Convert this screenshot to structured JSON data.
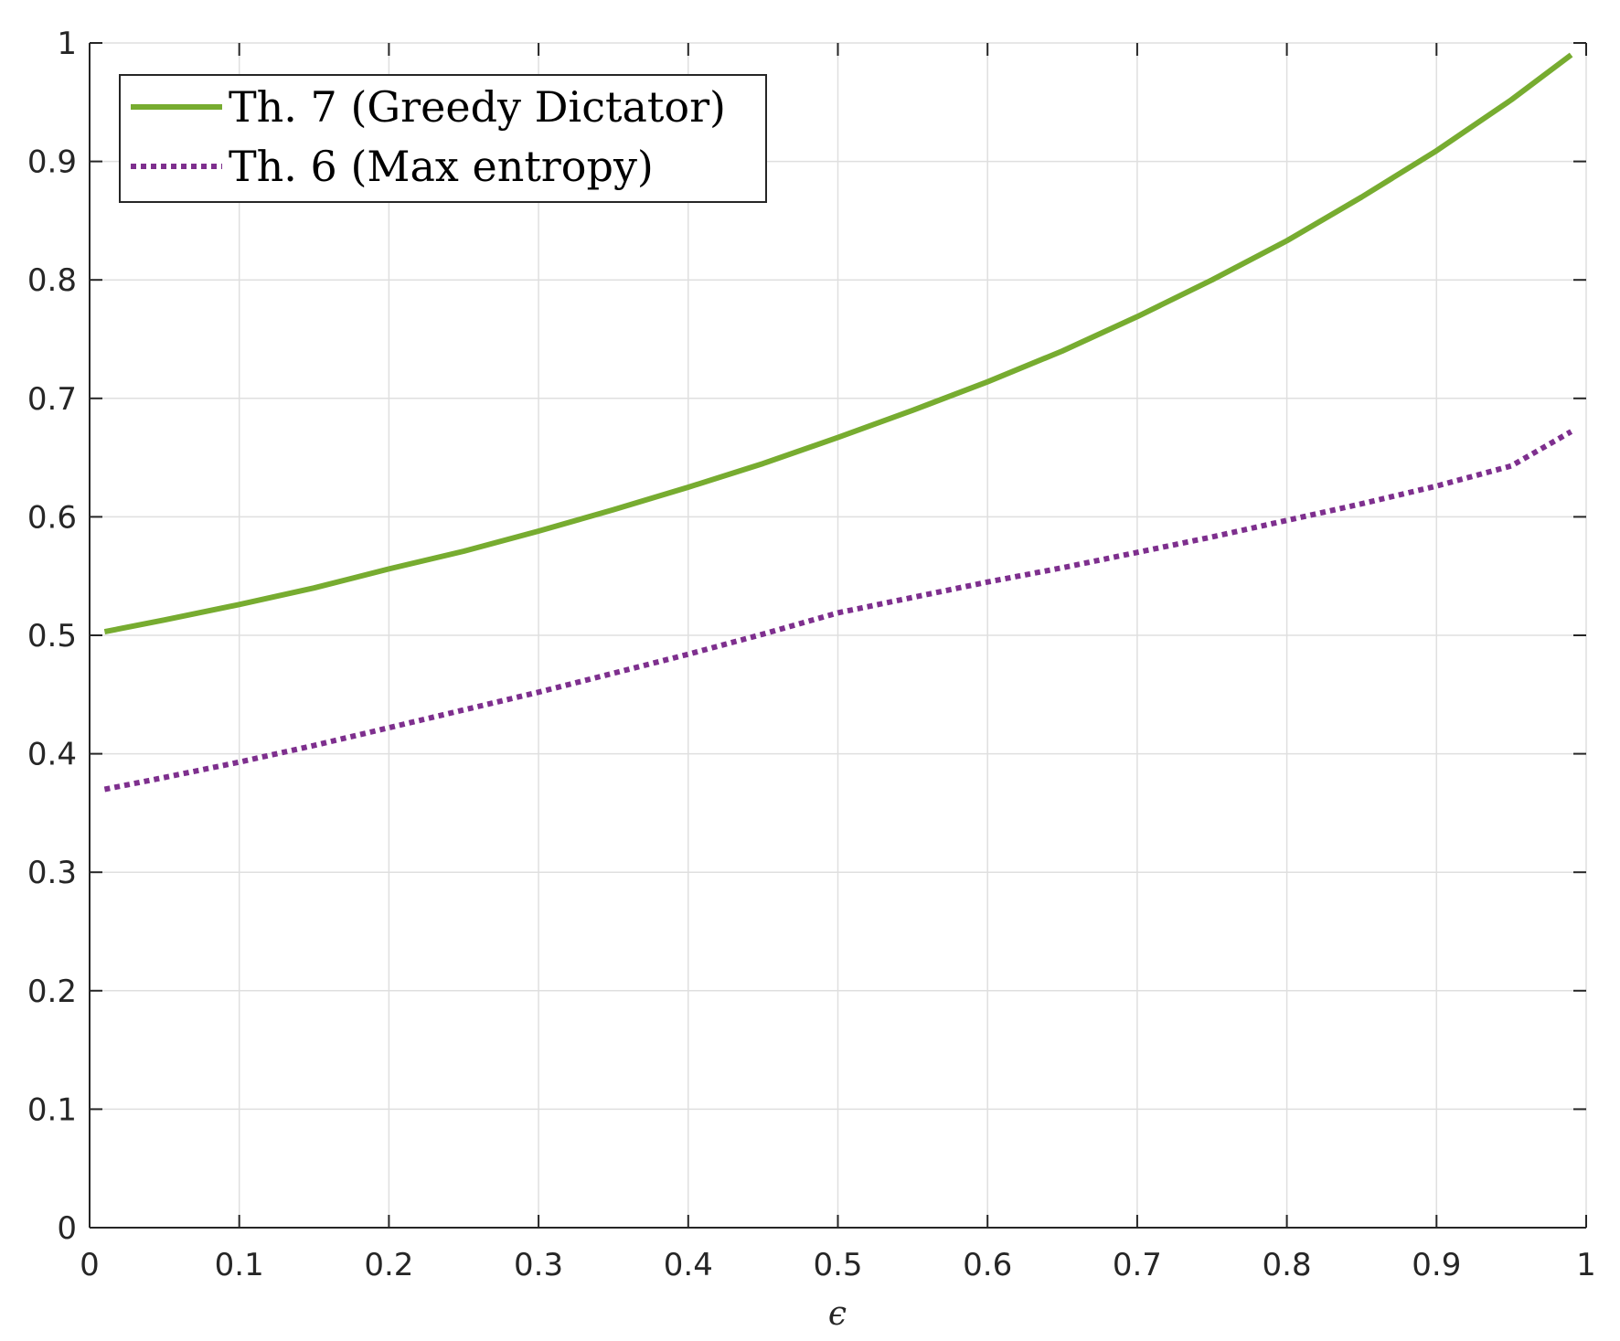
{
  "chart_data": {
    "type": "line",
    "title": "",
    "xlabel": "ϵ",
    "ylabel": "",
    "xlim": [
      0,
      1
    ],
    "ylim": [
      0,
      1
    ],
    "grid": true,
    "legend_position": "top-left",
    "x_ticks": [
      "0",
      "0.1",
      "0.2",
      "0.3",
      "0.4",
      "0.5",
      "0.6",
      "0.7",
      "0.8",
      "0.9",
      "1"
    ],
    "y_ticks": [
      "0",
      "0.1",
      "0.2",
      "0.3",
      "0.4",
      "0.5",
      "0.6",
      "0.7",
      "0.8",
      "0.9",
      "1"
    ],
    "x": [
      0.01,
      0.05,
      0.1,
      0.15,
      0.2,
      0.25,
      0.3,
      0.35,
      0.4,
      0.45,
      0.5,
      0.55,
      0.6,
      0.65,
      0.7,
      0.75,
      0.8,
      0.85,
      0.9,
      0.95,
      0.99
    ],
    "series": [
      {
        "name": "Th. 7 (Greedy Dictator)",
        "color": "#77ac30",
        "style": "solid",
        "values": [
          0.503,
          0.513,
          0.526,
          0.54,
          0.556,
          0.571,
          0.588,
          0.606,
          0.625,
          0.645,
          0.667,
          0.69,
          0.714,
          0.74,
          0.769,
          0.8,
          0.833,
          0.87,
          0.909,
          0.952,
          0.99
        ]
      },
      {
        "name": "Th. 6 (Max entropy)",
        "color": "#7e2f8e",
        "style": "dotted",
        "values": [
          0.37,
          0.38,
          0.393,
          0.407,
          0.422,
          0.437,
          0.452,
          0.468,
          0.484,
          0.501,
          0.519,
          0.532,
          0.545,
          0.557,
          0.57,
          0.583,
          0.597,
          0.611,
          0.626,
          0.643,
          0.672
        ]
      }
    ]
  }
}
